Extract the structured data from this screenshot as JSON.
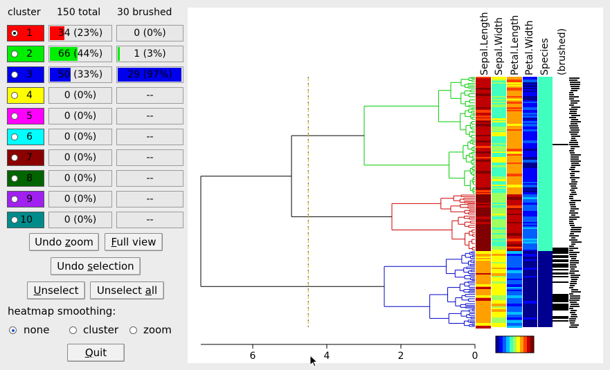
{
  "headers": {
    "cluster": "cluster",
    "total": "150 total",
    "brushed": "30 brushed"
  },
  "clusters": [
    {
      "label": "1",
      "color": "#ff0000",
      "selected": true,
      "total": "34 (23%)",
      "total_frac": 0.23,
      "brushed": "0 (0%)",
      "brushed_frac": 0
    },
    {
      "label": "2",
      "color": "#00ee00",
      "selected": false,
      "total": "66 (44%)",
      "total_frac": 0.44,
      "brushed": "1 (3%)",
      "brushed_frac": 0.03
    },
    {
      "label": "3",
      "color": "#0000ee",
      "selected": false,
      "total": "50 (33%)",
      "total_frac": 0.33,
      "brushed": "29 (97%)",
      "brushed_frac": 0.97
    },
    {
      "label": "4",
      "color": "#ffff00",
      "selected": false,
      "total": "0 (0%)",
      "total_frac": 0,
      "brushed": "--",
      "brushed_frac": 0
    },
    {
      "label": "5",
      "color": "#ff00ff",
      "selected": false,
      "total": "0 (0%)",
      "total_frac": 0,
      "brushed": "--",
      "brushed_frac": 0
    },
    {
      "label": "6",
      "color": "#00ffff",
      "selected": false,
      "total": "0 (0%)",
      "total_frac": 0,
      "brushed": "--",
      "brushed_frac": 0
    },
    {
      "label": "7",
      "color": "#8b0000",
      "selected": false,
      "total": "0 (0%)",
      "total_frac": 0,
      "brushed": "--",
      "brushed_frac": 0
    },
    {
      "label": "8",
      "color": "#006400",
      "selected": false,
      "total": "0 (0%)",
      "total_frac": 0,
      "brushed": "--",
      "brushed_frac": 0
    },
    {
      "label": "9",
      "color": "#a020f0",
      "selected": false,
      "total": "0 (0%)",
      "total_frac": 0,
      "brushed": "--",
      "brushed_frac": 0
    },
    {
      "label": "10",
      "color": "#008b8b",
      "selected": false,
      "total": "0 (0%)",
      "total_frac": 0,
      "brushed": "--",
      "brushed_frac": 0
    }
  ],
  "buttons": {
    "undo_zoom_pre": "Undo ",
    "undo_zoom_u": "z",
    "undo_zoom_post": "oom",
    "full_view_pre": "",
    "full_view_u": "F",
    "full_view_post": "ull view",
    "undo_sel_pre": "Undo ",
    "undo_sel_u": "s",
    "undo_sel_post": "election",
    "unselect_pre": "",
    "unselect_u": "U",
    "unselect_post": "nselect",
    "unselect_all_pre": "Unselect ",
    "unselect_all_u": "a",
    "unselect_all_post": "ll",
    "quit_pre": "",
    "quit_u": "Q",
    "quit_post": "uit"
  },
  "smoothing": {
    "label": "heatmap smoothing:",
    "options": [
      "none",
      "cluster",
      "zoom"
    ],
    "selected": "none"
  },
  "heatmap": {
    "columns": [
      "Sepal.Length",
      "Sepal.Width",
      "Petal.Length",
      "Petal.Width",
      "Species",
      "(brushed)"
    ],
    "axis_ticks": [
      "6",
      "4",
      "2",
      "0"
    ],
    "cut_height": 4.5
  },
  "colors": {
    "green_cluster": "#00cc00",
    "red_cluster": "#cc0000",
    "blue_cluster": "#0000cc",
    "cut_line": "#d4b400"
  }
}
